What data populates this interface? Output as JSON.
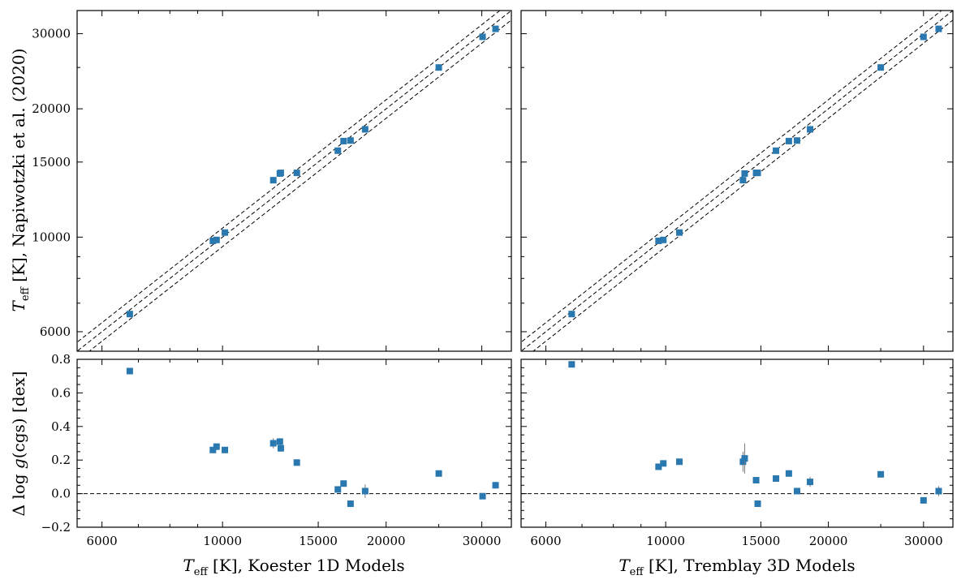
{
  "chart_data": [
    {
      "type": "scatter",
      "panel": "top-left",
      "x_scale": "log",
      "y_scale": "log",
      "xlim": [
        5400,
        34000
      ],
      "ylim": [
        5400,
        34000
      ],
      "ylabel": "T_eff [K], Napiwotzki et al. (2020)",
      "xlabel": "",
      "x_ticks": [
        "6000",
        "10000",
        "15000",
        "20000",
        "30000"
      ],
      "y_ticks": [
        "6000",
        "10000",
        "15000",
        "20000",
        "30000"
      ],
      "reference_lines": [
        1.0,
        1.05,
        0.95
      ],
      "points": [
        {
          "x": 6750,
          "y": 6600
        },
        {
          "x": 9600,
          "y": 9800
        },
        {
          "x": 9750,
          "y": 9850
        },
        {
          "x": 10100,
          "y": 10250
        },
        {
          "x": 12400,
          "y": 13600
        },
        {
          "x": 12750,
          "y": 14100
        },
        {
          "x": 12800,
          "y": 14150
        },
        {
          "x": 13700,
          "y": 14150
        },
        {
          "x": 16300,
          "y": 15950
        },
        {
          "x": 16700,
          "y": 16800
        },
        {
          "x": 17200,
          "y": 16850
        },
        {
          "x": 18300,
          "y": 17900
        },
        {
          "x": 25000,
          "y": 25000
        },
        {
          "x": 30100,
          "y": 29500
        },
        {
          "x": 31800,
          "y": 30800
        }
      ]
    },
    {
      "type": "scatter",
      "panel": "top-right",
      "x_scale": "log",
      "y_scale": "log",
      "xlim": [
        5400,
        34000
      ],
      "ylim": [
        5400,
        34000
      ],
      "xlabel": "",
      "ylabel": "",
      "x_ticks": [
        "6000",
        "10000",
        "15000",
        "20000",
        "30000"
      ],
      "reference_lines": [
        1.0,
        1.05,
        0.95
      ],
      "points": [
        {
          "x": 6700,
          "y": 6600
        },
        {
          "x": 9700,
          "y": 9800
        },
        {
          "x": 9900,
          "y": 9850
        },
        {
          "x": 10600,
          "y": 10250
        },
        {
          "x": 13900,
          "y": 13600
        },
        {
          "x": 14000,
          "y": 14100
        },
        {
          "x": 14700,
          "y": 14150
        },
        {
          "x": 14800,
          "y": 14150
        },
        {
          "x": 16000,
          "y": 15950
        },
        {
          "x": 16900,
          "y": 16800
        },
        {
          "x": 17500,
          "y": 16850
        },
        {
          "x": 18500,
          "y": 17900
        },
        {
          "x": 25000,
          "y": 25000
        },
        {
          "x": 30000,
          "y": 29500
        },
        {
          "x": 32000,
          "y": 30800
        }
      ]
    },
    {
      "type": "scatter",
      "panel": "bottom-left",
      "x_scale": "log",
      "xlim": [
        5400,
        34000
      ],
      "ylim": [
        -0.2,
        0.8
      ],
      "ylabel": "Δ log g(cgs) [dex]",
      "xlabel": "T_eff [K], Koester 1D Models",
      "x_ticks": [
        "6000",
        "10000",
        "15000",
        "20000",
        "30000"
      ],
      "y_ticks": [
        "−0.2",
        "0.0",
        "0.2",
        "0.4",
        "0.6",
        "0.8"
      ],
      "zero_line": 0.0,
      "points": [
        {
          "x": 6750,
          "y": 0.73,
          "err": 0.0
        },
        {
          "x": 9600,
          "y": 0.26,
          "err": 0.0
        },
        {
          "x": 9750,
          "y": 0.28,
          "err": 0.02
        },
        {
          "x": 10100,
          "y": 0.26,
          "err": 0.01
        },
        {
          "x": 12400,
          "y": 0.3,
          "err": 0.03
        },
        {
          "x": 12750,
          "y": 0.31,
          "err": 0.02
        },
        {
          "x": 12800,
          "y": 0.27,
          "err": 0.02
        },
        {
          "x": 13700,
          "y": 0.185,
          "err": 0.02
        },
        {
          "x": 16300,
          "y": 0.025,
          "err": 0.0
        },
        {
          "x": 16700,
          "y": 0.06,
          "err": 0.01
        },
        {
          "x": 17200,
          "y": -0.06,
          "err": 0.02
        },
        {
          "x": 18300,
          "y": 0.015,
          "err": 0.04
        },
        {
          "x": 25000,
          "y": 0.12,
          "err": 0.0
        },
        {
          "x": 30100,
          "y": -0.015,
          "err": 0.0
        },
        {
          "x": 31800,
          "y": 0.05,
          "err": 0.02
        }
      ]
    },
    {
      "type": "scatter",
      "panel": "bottom-right",
      "x_scale": "log",
      "xlim": [
        5400,
        34000
      ],
      "ylim": [
        -0.2,
        0.8
      ],
      "ylabel": "",
      "xlabel": "T_eff [K], Tremblay 3D Models",
      "x_ticks": [
        "6000",
        "10000",
        "15000",
        "20000",
        "30000"
      ],
      "zero_line": 0.0,
      "points": [
        {
          "x": 6700,
          "y": 0.77,
          "err": 0.0
        },
        {
          "x": 9700,
          "y": 0.16,
          "err": 0.0
        },
        {
          "x": 9900,
          "y": 0.18,
          "err": 0.0
        },
        {
          "x": 10600,
          "y": 0.19,
          "err": 0.0
        },
        {
          "x": 13900,
          "y": 0.19,
          "err": 0.06
        },
        {
          "x": 14000,
          "y": 0.21,
          "err": 0.09
        },
        {
          "x": 14700,
          "y": 0.08,
          "err": 0.01
        },
        {
          "x": 14800,
          "y": -0.06,
          "err": 0.02
        },
        {
          "x": 16000,
          "y": 0.09,
          "err": 0.0
        },
        {
          "x": 16900,
          "y": 0.12,
          "err": 0.02
        },
        {
          "x": 17500,
          "y": 0.015,
          "err": 0.01
        },
        {
          "x": 18500,
          "y": 0.07,
          "err": 0.03
        },
        {
          "x": 25000,
          "y": 0.115,
          "err": 0.0
        },
        {
          "x": 30000,
          "y": -0.04,
          "err": 0.0
        },
        {
          "x": 32000,
          "y": 0.015,
          "err": 0.03
        }
      ]
    }
  ],
  "labels": {
    "top_y_main": "T",
    "top_y_sub": "eff",
    "top_y_rest": " [K], Napiwotzki et al. (2020)",
    "bottom_y_pre": "Δ log ",
    "bottom_y_g": "g",
    "bottom_y_rest": "(cgs) [dex]",
    "x_main": "T",
    "x_sub": "eff",
    "x_left_rest": " [K], Koester 1D Models",
    "x_right_rest": " [K], Tremblay 3D Models"
  },
  "colors": {
    "marker": "#2a78b0",
    "errorbar": "#777777"
  }
}
